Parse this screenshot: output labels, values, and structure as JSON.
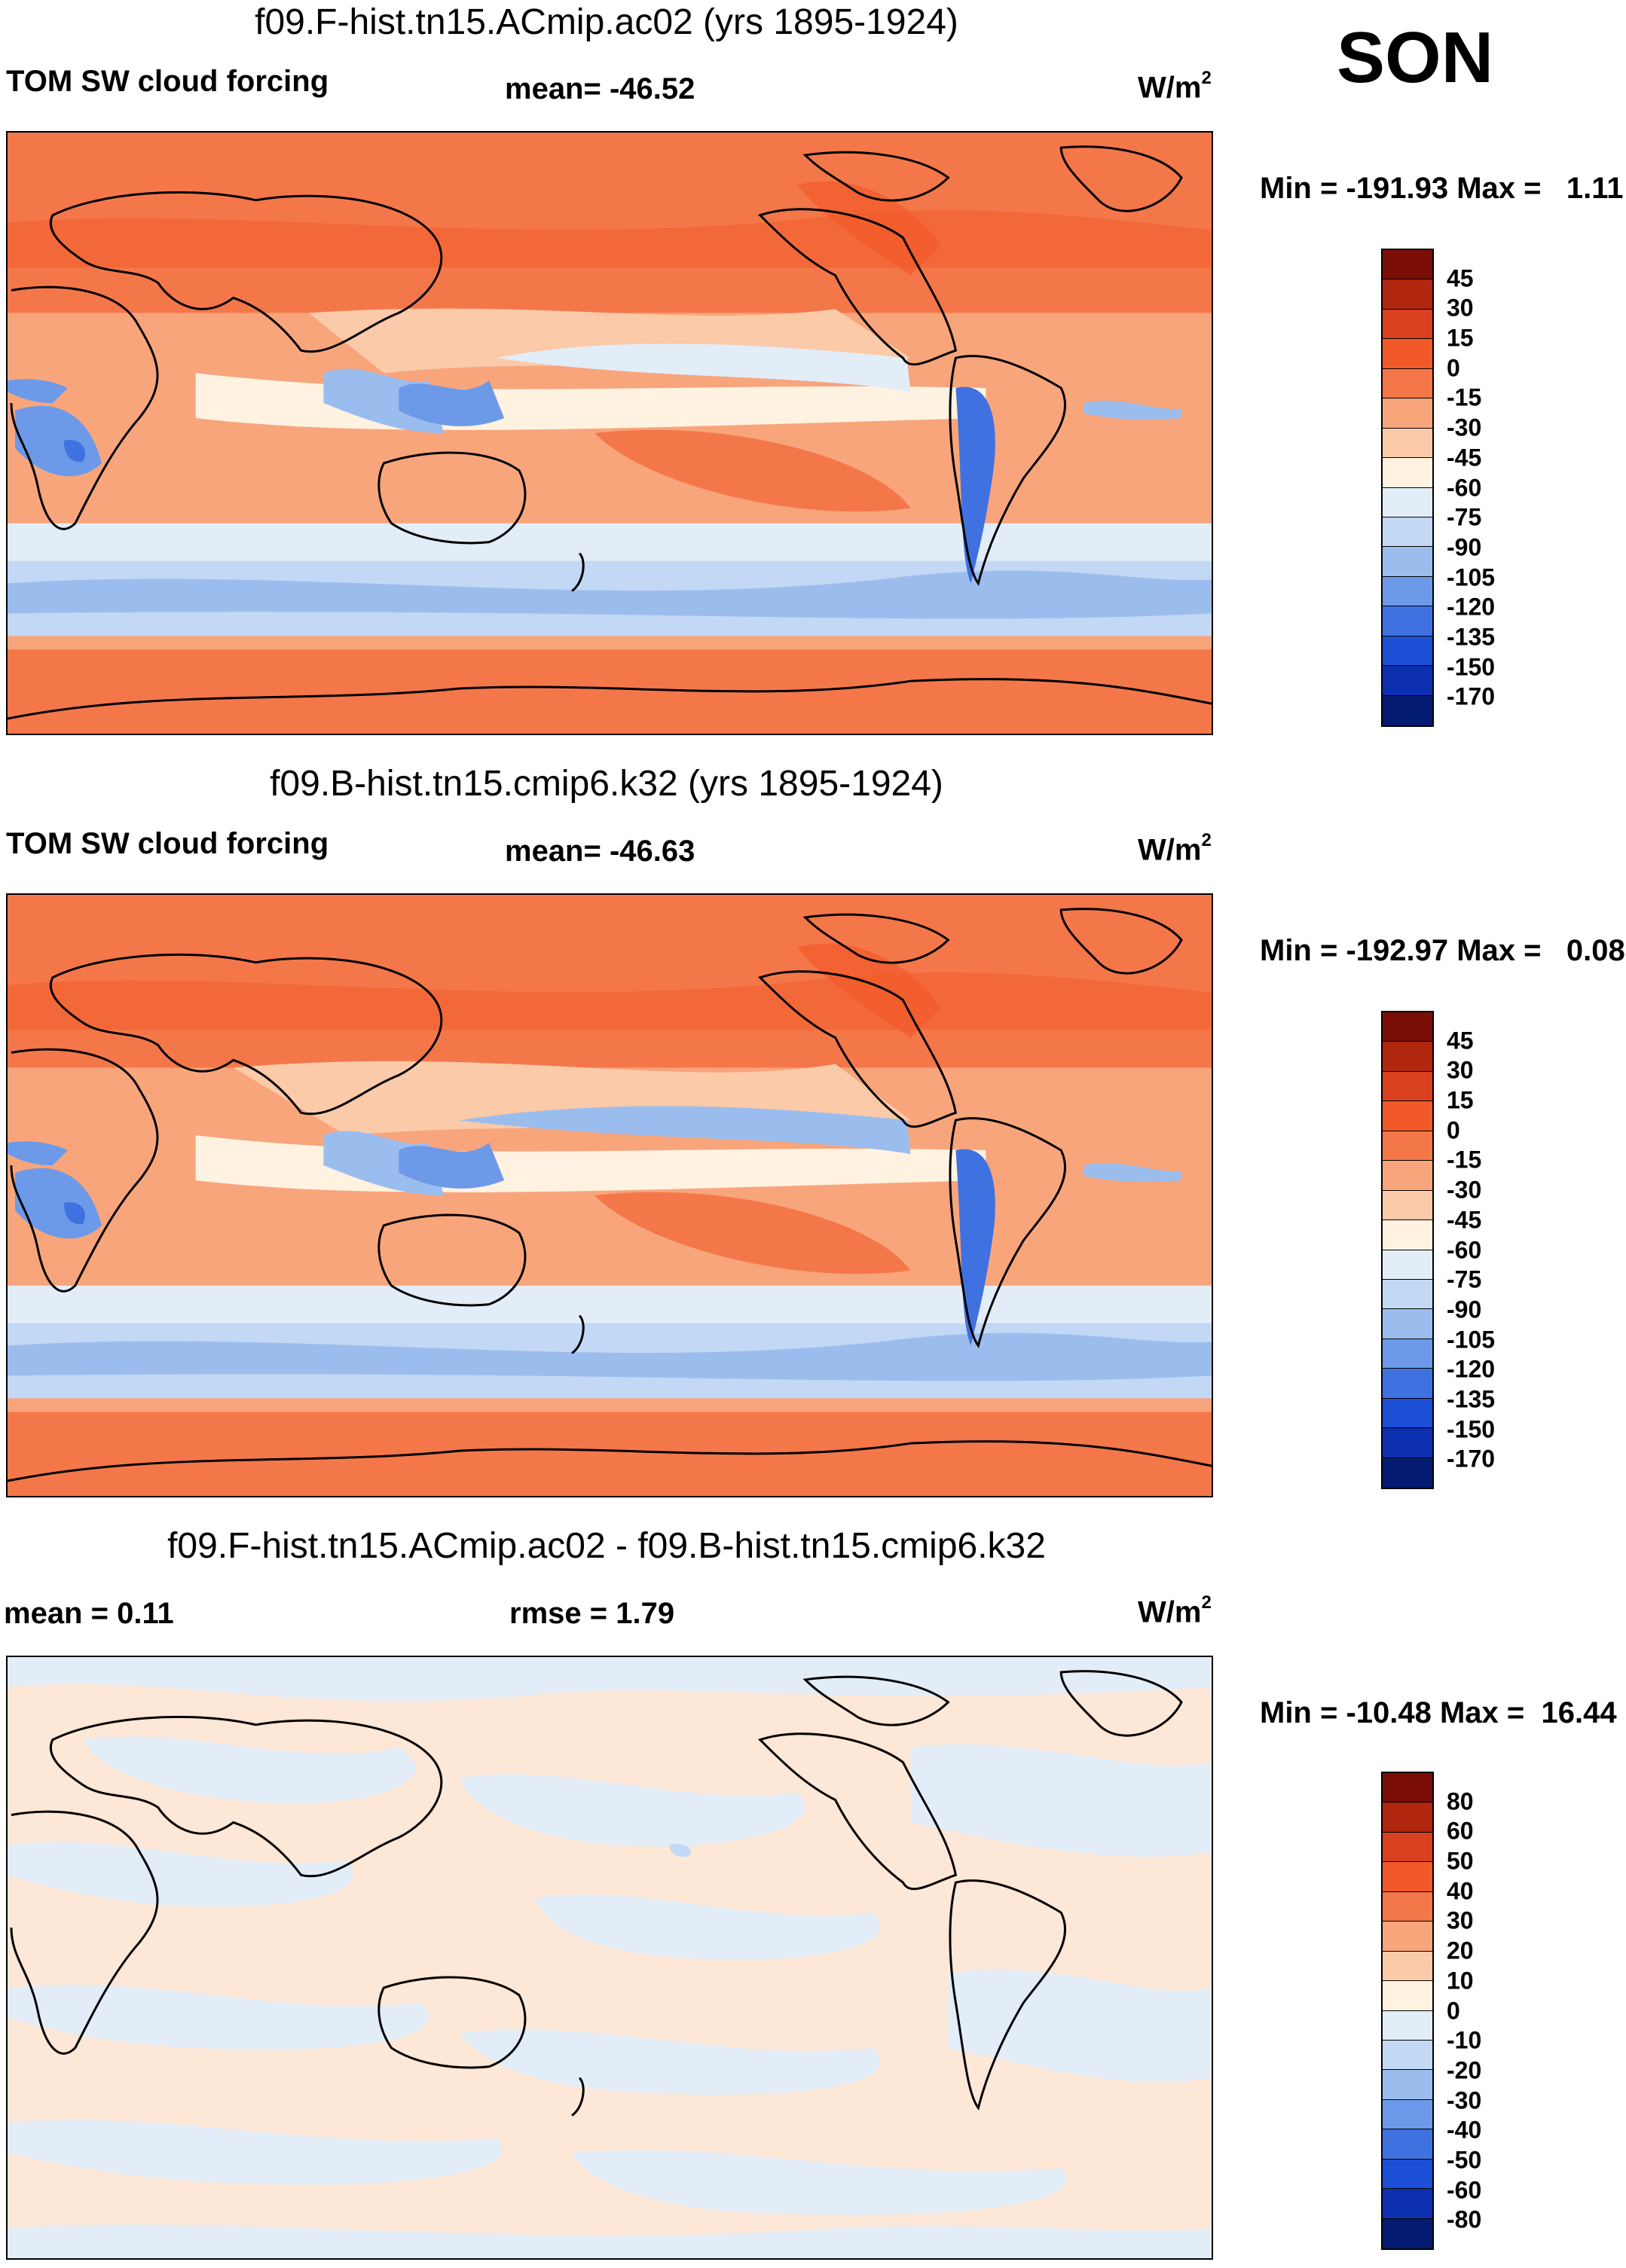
{
  "season": "SON",
  "panels": [
    {
      "title": "f09.F-hist.tn15.ACmip.ac02 (yrs 1895-1924)",
      "left_label": "TOM SW cloud forcing",
      "mean_label": "mean= -46.52",
      "units_base": "W/m",
      "units_exp": "2",
      "minmax": "Min = -191.93 Max =   1.11",
      "legend_levels": [
        "45",
        "30",
        "15",
        "0",
        "-15",
        "-30",
        "-45",
        "-60",
        "-75",
        "-90",
        "-105",
        "-120",
        "-135",
        "-150",
        "-170"
      ],
      "legend_colors": [
        "#7a0e05",
        "#b0260f",
        "#d8401f",
        "#f15a28",
        "#f4774a",
        "#f8a57c",
        "#fbcaa9",
        "#fff2e1",
        "#e2edf8",
        "#c3d8f4",
        "#9bbdee",
        "#6c9ae8",
        "#3f72e0",
        "#1d4ed6",
        "#0c2fb0",
        "#041b72"
      ]
    },
    {
      "title": "f09.B-hist.tn15.cmip6.k32 (yrs 1895-1924)",
      "left_label": "TOM SW cloud forcing",
      "mean_label": "mean= -46.63",
      "units_base": "W/m",
      "units_exp": "2",
      "minmax": "Min = -192.97 Max =   0.08",
      "legend_levels": [
        "45",
        "30",
        "15",
        "0",
        "-15",
        "-30",
        "-45",
        "-60",
        "-75",
        "-90",
        "-105",
        "-120",
        "-135",
        "-150",
        "-170"
      ],
      "legend_colors": [
        "#7a0e05",
        "#b0260f",
        "#d8401f",
        "#f15a28",
        "#f4774a",
        "#f8a57c",
        "#fbcaa9",
        "#fff2e1",
        "#e2edf8",
        "#c3d8f4",
        "#9bbdee",
        "#6c9ae8",
        "#3f72e0",
        "#1d4ed6",
        "#0c2fb0",
        "#041b72"
      ]
    },
    {
      "title": "f09.F-hist.tn15.ACmip.ac02 - f09.B-hist.tn15.cmip6.k32",
      "left_label": "mean =   0.11",
      "mean_label": "rmse =   1.79",
      "units_base": "W/m",
      "units_exp": "2",
      "minmax": "Min = -10.48 Max =  16.44",
      "legend_levels": [
        "80",
        "60",
        "50",
        "40",
        "30",
        "20",
        "10",
        "0",
        "-10",
        "-20",
        "-30",
        "-40",
        "-50",
        "-60",
        "-80"
      ],
      "legend_colors": [
        "#7a0e05",
        "#b0260f",
        "#d8401f",
        "#f15a28",
        "#f4774a",
        "#f8a57c",
        "#fbcaa9",
        "#fff2e1",
        "#e2edf8",
        "#c3d8f4",
        "#9bbdee",
        "#6c9ae8",
        "#3f72e0",
        "#1d4ed6",
        "#0c2fb0",
        "#041b72"
      ]
    }
  ]
}
